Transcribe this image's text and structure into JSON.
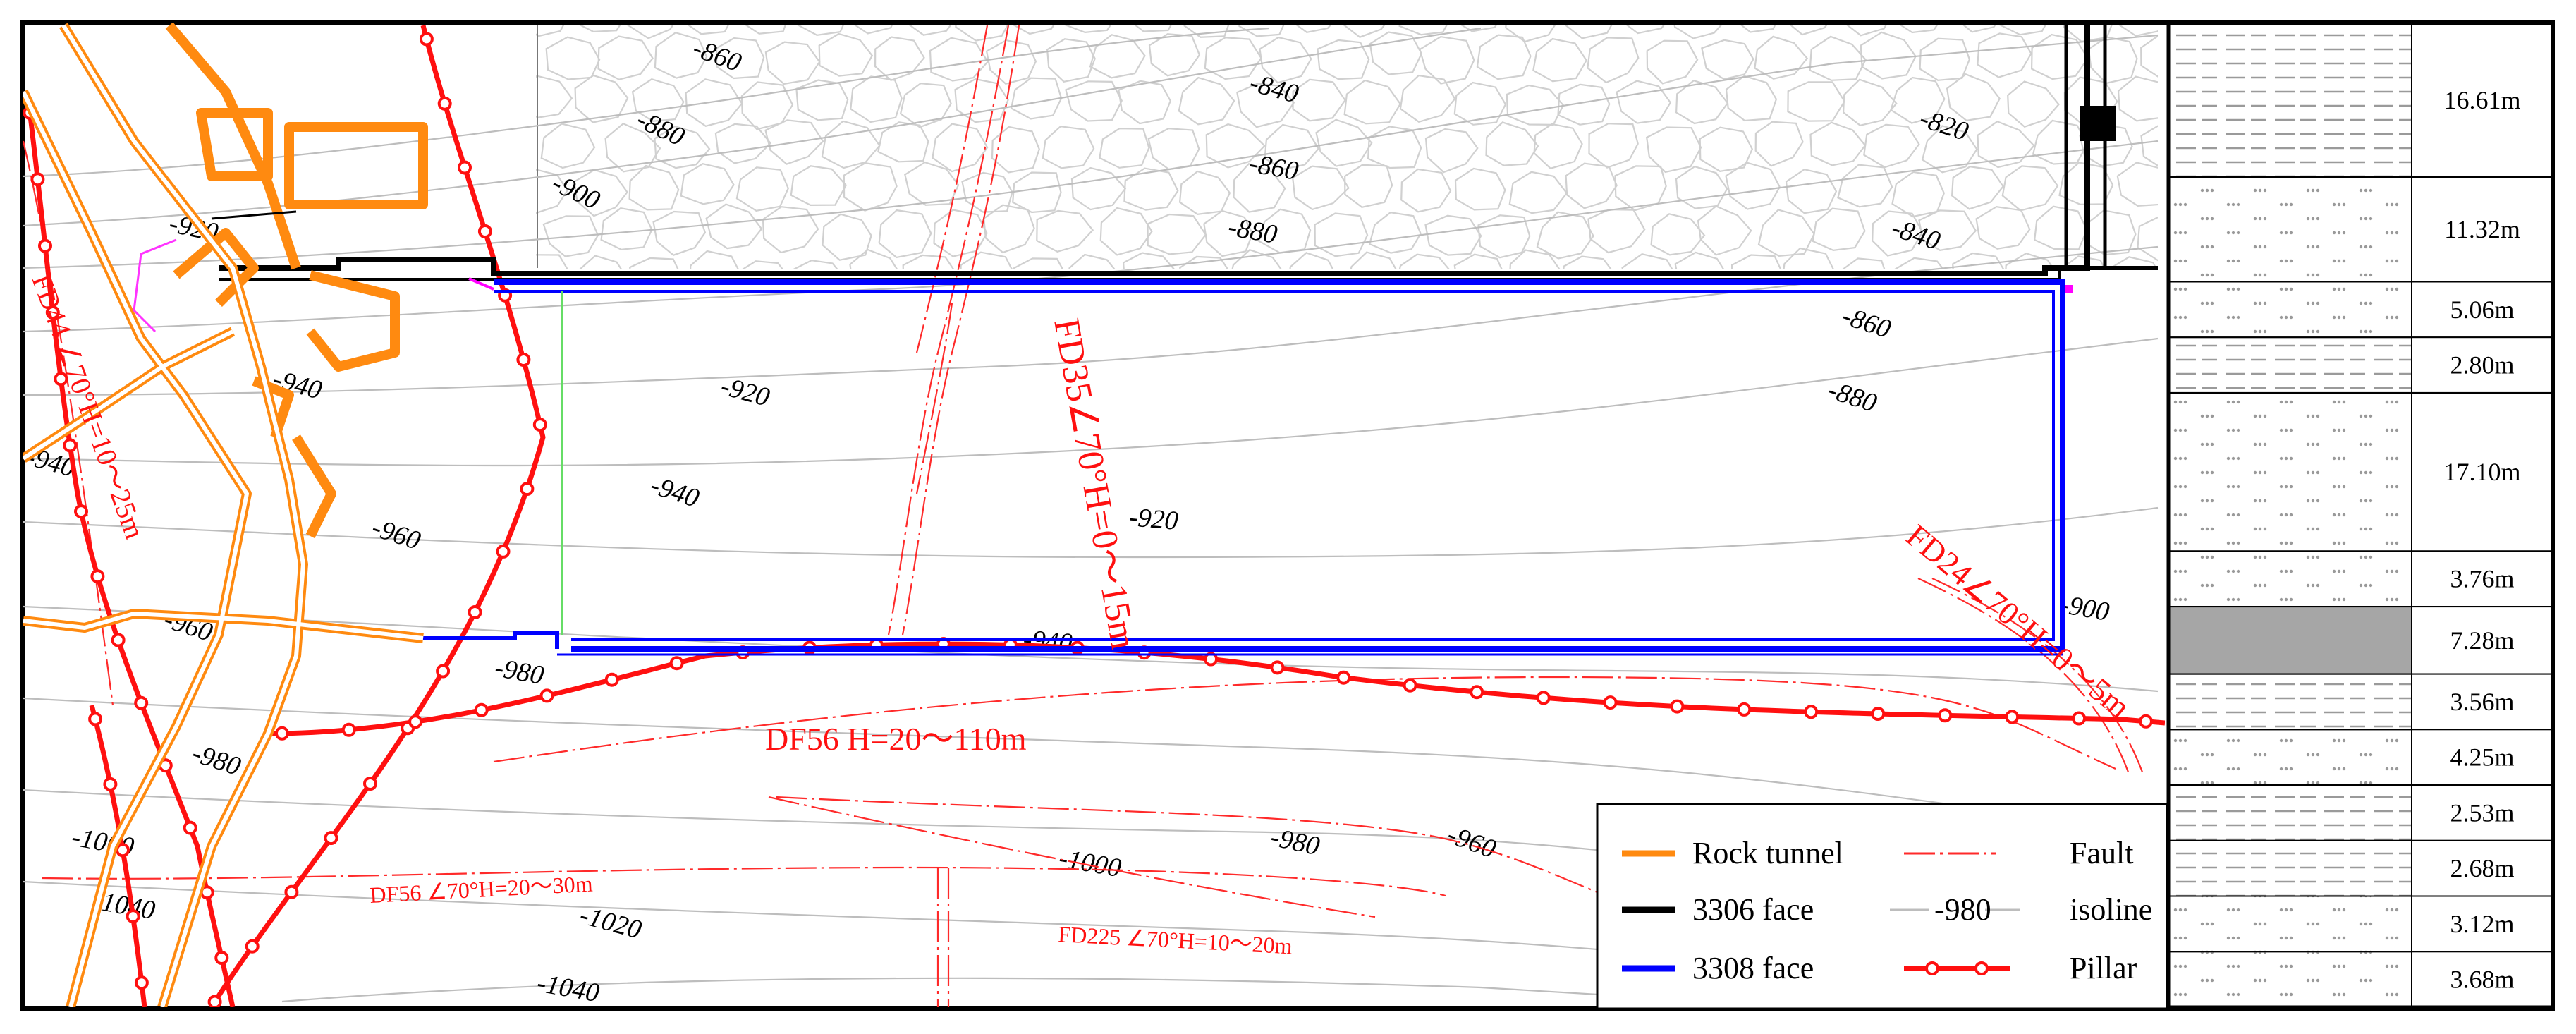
{
  "colors": {
    "rock_tunnel": "#ff8a10",
    "face_3306": "#000000",
    "face_3308": "#0000ff",
    "fault": "#ff1010",
    "isoline": "#bdbdbd",
    "pillar": "#ff1010",
    "coal_seam": "#a6a6a6"
  },
  "isolines": [
    {
      "value": "-860",
      "label": "-860"
    },
    {
      "value": "-840",
      "label": "-840"
    },
    {
      "value": "-880",
      "label": "-880"
    },
    {
      "value": "-820",
      "label": "-820"
    },
    {
      "value": "-860",
      "label": "-860"
    },
    {
      "value": "-900",
      "label": "-900"
    },
    {
      "value": "-880",
      "label": "-880"
    },
    {
      "value": "-840",
      "label": "-840"
    },
    {
      "value": "-920",
      "label": "-920"
    },
    {
      "value": "-860",
      "label": "-860"
    },
    {
      "value": "-880",
      "label": "-880"
    },
    {
      "value": "-940",
      "label": "-940"
    },
    {
      "value": "-940",
      "label": "-940"
    },
    {
      "value": "-940",
      "label": "-940"
    },
    {
      "value": "-920",
      "label": "-920"
    },
    {
      "value": "-960",
      "label": "-960"
    },
    {
      "value": "-900",
      "label": "-900"
    },
    {
      "value": "-960",
      "label": "-960"
    },
    {
      "value": "-980",
      "label": "-980"
    },
    {
      "value": "-940",
      "label": "-940"
    },
    {
      "value": "-980",
      "label": "-980"
    },
    {
      "value": "-1000",
      "label": "-1000"
    },
    {
      "value": "-980",
      "label": "-980"
    },
    {
      "value": "-960",
      "label": "-960"
    },
    {
      "value": "-1000",
      "label": "-1000"
    },
    {
      "value": "-1040",
      "label": "-1040"
    },
    {
      "value": "-1020",
      "label": "-1020"
    },
    {
      "value": "-1040",
      "label": "-1040"
    },
    {
      "value": "-920",
      "label": "-920"
    }
  ],
  "faults": {
    "fd44": "FD44 ∠70°H=10～25m",
    "fd35": "FD35∠70°H=0～15m",
    "fd24": "FD24∠70°H=0～5m",
    "df56_main": "DF56 H=20～110m",
    "df56_small": "DF56 ∠70°H=20～30m",
    "fd225": "FD225 ∠70°H=10～20m"
  },
  "legend": {
    "rock_tunnel": "Rock tunnel",
    "face_3306": "3306 face",
    "face_3308": "3308 face",
    "fault": "Fault",
    "isoline_sample": "-980",
    "isoline": "isoline",
    "pillar": "Pillar"
  },
  "column": {
    "layers": [
      {
        "thickness": "16.61m",
        "pattern": "dash"
      },
      {
        "thickness": "11.32m",
        "pattern": "dot"
      },
      {
        "thickness": "5.06m",
        "pattern": "dot"
      },
      {
        "thickness": "2.80m",
        "pattern": "dash"
      },
      {
        "thickness": "17.10m",
        "pattern": "dot"
      },
      {
        "thickness": "3.76m",
        "pattern": "dot"
      },
      {
        "thickness": "7.28m",
        "pattern": "coal"
      },
      {
        "thickness": "3.56m",
        "pattern": "dash"
      },
      {
        "thickness": "4.25m",
        "pattern": "dot"
      },
      {
        "thickness": "2.53m",
        "pattern": "dash"
      },
      {
        "thickness": "2.68m",
        "pattern": "dash"
      },
      {
        "thickness": "3.12m",
        "pattern": "dot"
      },
      {
        "thickness": "3.68m",
        "pattern": "dot"
      }
    ]
  }
}
